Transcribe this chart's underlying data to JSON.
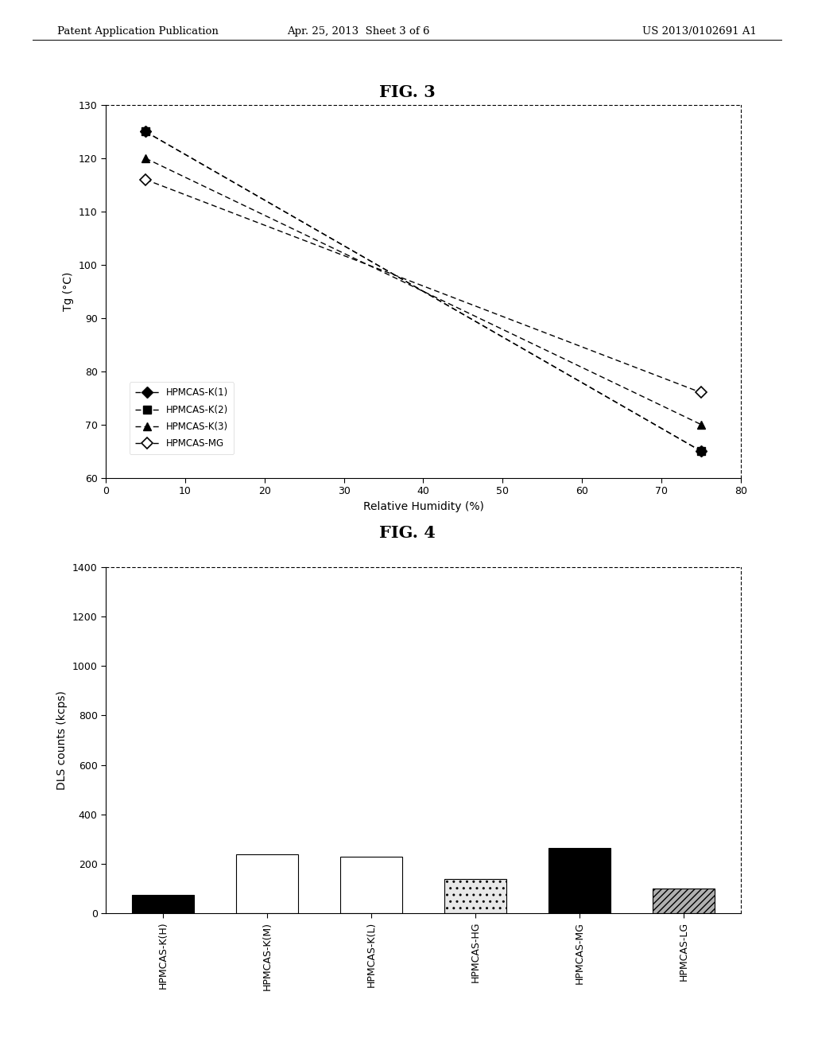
{
  "fig3": {
    "title": "FIG. 3",
    "xlabel": "Relative Humidity (%)",
    "ylabel": "Tg (°C)",
    "xlim": [
      0,
      80
    ],
    "ylim": [
      60,
      130
    ],
    "xticks": [
      0,
      10,
      20,
      30,
      40,
      50,
      60,
      70,
      80
    ],
    "yticks": [
      60,
      70,
      80,
      90,
      100,
      110,
      120,
      130
    ],
    "series": [
      {
        "label": "HPMCAS-K(1)",
        "x": [
          5,
          75
        ],
        "y": [
          125,
          65
        ],
        "marker": "D",
        "marker_size": 7,
        "color": "#000000",
        "fillstyle": "full"
      },
      {
        "label": "HPMCAS-K(2)",
        "x": [
          5,
          75
        ],
        "y": [
          125,
          65
        ],
        "marker": "s",
        "marker_size": 7,
        "color": "#000000",
        "fillstyle": "full"
      },
      {
        "label": "HPMCAS-K(3)",
        "x": [
          5,
          75
        ],
        "y": [
          120,
          70
        ],
        "marker": "^",
        "marker_size": 7,
        "color": "#000000",
        "fillstyle": "full"
      },
      {
        "label": "HPMCAS-MG",
        "x": [
          5,
          75
        ],
        "y": [
          116,
          76
        ],
        "marker": "D",
        "marker_size": 7,
        "color": "#000000",
        "fillstyle": "none"
      }
    ]
  },
  "fig4": {
    "title": "FIG. 4",
    "ylabel": "DLS counts (kcps)",
    "ylim": [
      0,
      1400
    ],
    "yticks": [
      0,
      200,
      400,
      600,
      800,
      1000,
      1200,
      1400
    ],
    "categories": [
      "HPMCAS-K(H)",
      "HPMCAS-K(M)",
      "HPMCAS-K(L)",
      "HPMCAS-HG",
      "HPMCAS-MG",
      "HPMCAS-LG"
    ],
    "values": [
      75,
      240,
      230,
      140,
      265,
      100
    ],
    "bar_colors": [
      "#000000",
      "#ffffff",
      "#ffffff",
      "#e8e8e8",
      "#000000",
      "#b0b0b0"
    ],
    "bar_edgecolors": [
      "#000000",
      "#000000",
      "#000000",
      "#000000",
      "#000000",
      "#000000"
    ],
    "bar_hatches": [
      "",
      "",
      "",
      "..",
      "",
      "////"
    ]
  },
  "header": {
    "left": "Patent Application Publication",
    "center": "Apr. 25, 2013  Sheet 3 of 6",
    "right": "US 2013/0102691 A1"
  },
  "background_color": "#ffffff"
}
